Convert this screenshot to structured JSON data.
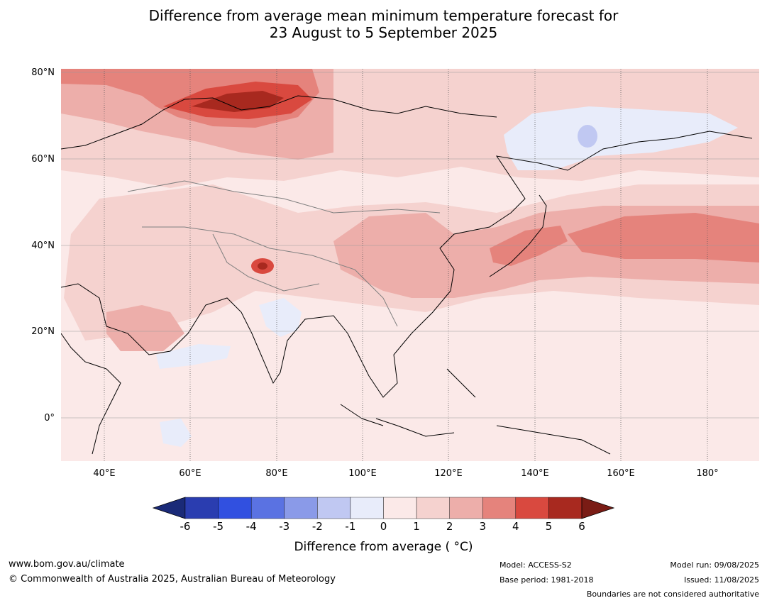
{
  "title": {
    "line1": "Difference from average mean minimum temperature forecast for",
    "line2": "23 August to 5 September 2025"
  },
  "map": {
    "lat_labels": [
      "80°N",
      "60°N",
      "40°N",
      "20°N",
      "0°"
    ],
    "lon_labels": [
      "40°E",
      "60°E",
      "80°E",
      "100°E",
      "120°E",
      "140°E",
      "160°E",
      "180°"
    ]
  },
  "colorbar": {
    "title": "Difference from average ( °C)",
    "ticks": [
      "-6",
      "-5",
      "-4",
      "-3",
      "-2",
      "-1",
      "0",
      "1",
      "2",
      "3",
      "4",
      "5",
      "6"
    ],
    "colors": [
      "#1a2a78",
      "#2a3db0",
      "#3150e0",
      "#5a72e2",
      "#8a9ae8",
      "#c0c8f2",
      "#e8ecfa",
      "#fbe9e8",
      "#f5d2cf",
      "#edaeaa",
      "#e5837c",
      "#d9493f",
      "#a8291f",
      "#7a1c15"
    ]
  },
  "footer": {
    "website": "www.bom.gov.au/climate",
    "copyright": "© Commonwealth of Australia 2025, Australian Bureau of Meteorology",
    "model": "Model: ACCESS-S2",
    "base_period": "Base period: 1981-2018",
    "model_run": "Model run: 09/08/2025",
    "issued": "Issued: 11/08/2025",
    "disclaimer": "Boundaries are not considered authoritative"
  }
}
